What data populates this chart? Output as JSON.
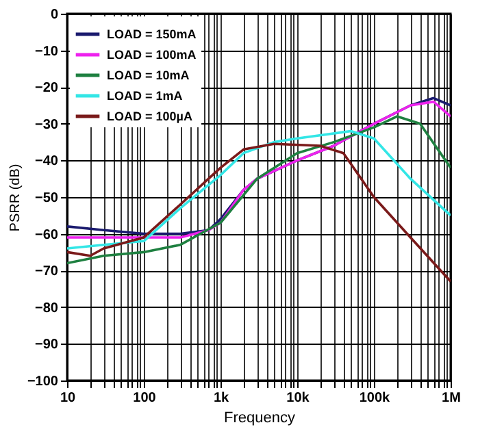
{
  "chart_data": {
    "type": "line",
    "xlabel": "Frequency",
    "ylabel": "PSRR (dB)",
    "log": "x",
    "grid": true,
    "legend": "top left",
    "line_style": "solid",
    "marker": "none",
    "xlim": [
      10,
      1000000
    ],
    "ylim": [
      -100,
      0
    ],
    "xticks": [
      {
        "value": 10,
        "label": "10"
      },
      {
        "value": 20,
        "label": null
      },
      {
        "value": 30,
        "label": null
      },
      {
        "value": 40,
        "label": null
      },
      {
        "value": 50,
        "label": null
      },
      {
        "value": 60,
        "label": null
      },
      {
        "value": 70,
        "label": null
      },
      {
        "value": 80,
        "label": null
      },
      {
        "value": 90,
        "label": null
      },
      {
        "value": 100,
        "label": "100"
      },
      {
        "value": 200,
        "label": null
      },
      {
        "value": 300,
        "label": null
      },
      {
        "value": 400,
        "label": null
      },
      {
        "value": 500,
        "label": null
      },
      {
        "value": 600,
        "label": null
      },
      {
        "value": 700,
        "label": null
      },
      {
        "value": 800,
        "label": null
      },
      {
        "value": 900,
        "label": null
      },
      {
        "value": 1000,
        "label": "1k"
      },
      {
        "value": 2000,
        "label": null
      },
      {
        "value": 3000,
        "label": null
      },
      {
        "value": 4000,
        "label": null
      },
      {
        "value": 5000,
        "label": null
      },
      {
        "value": 6000,
        "label": null
      },
      {
        "value": 7000,
        "label": null
      },
      {
        "value": 8000,
        "label": null
      },
      {
        "value": 9000,
        "label": null
      },
      {
        "value": 10000,
        "label": "10k"
      },
      {
        "value": 20000,
        "label": null
      },
      {
        "value": 30000,
        "label": null
      },
      {
        "value": 40000,
        "label": null
      },
      {
        "value": 50000,
        "label": null
      },
      {
        "value": 60000,
        "label": null
      },
      {
        "value": 70000,
        "label": null
      },
      {
        "value": 80000,
        "label": null
      },
      {
        "value": 90000,
        "label": null
      },
      {
        "value": 100000,
        "label": "100k"
      },
      {
        "value": 200000,
        "label": null
      },
      {
        "value": 300000,
        "label": null
      },
      {
        "value": 400000,
        "label": null
      },
      {
        "value": 500000,
        "label": null
      },
      {
        "value": 600000,
        "label": null
      },
      {
        "value": 700000,
        "label": null
      },
      {
        "value": 800000,
        "label": null
      },
      {
        "value": 900000,
        "label": null
      },
      {
        "value": 1000000,
        "label": "1M"
      }
    ],
    "yticks": [
      {
        "value": 0,
        "label": "0"
      },
      {
        "value": -10,
        "label": "−10"
      },
      {
        "value": -20,
        "label": "−20"
      },
      {
        "value": -30,
        "label": "−30"
      },
      {
        "value": -40,
        "label": "−40"
      },
      {
        "value": -50,
        "label": "−50"
      },
      {
        "value": -60,
        "label": "−60"
      },
      {
        "value": -70,
        "label": "−70"
      },
      {
        "value": -80,
        "label": "−80"
      },
      {
        "value": -90,
        "label": "−90"
      },
      {
        "value": -100,
        "label": "−100"
      }
    ],
    "series": [
      {
        "name": "LOAD = 150mA",
        "color": "#1a1a6e",
        "x": [
          10,
          30,
          100,
          300,
          700,
          1000,
          2000,
          3000,
          10000,
          30000,
          100000,
          300000,
          600000,
          1000000
        ],
        "values": [
          -58,
          -59,
          -60,
          -60,
          -59,
          -56,
          -48,
          -45,
          -40,
          -36,
          -30,
          -25,
          -23,
          -25
        ]
      },
      {
        "name": "LOAD = 100mA",
        "color": "#ee22ee",
        "x": [
          10,
          30,
          100,
          300,
          700,
          1000,
          2000,
          3000,
          10000,
          30000,
          100000,
          300000,
          600000,
          1000000
        ],
        "values": [
          -61,
          -61,
          -61,
          -61,
          -59,
          -57,
          -48,
          -45,
          -40,
          -36,
          -30,
          -25,
          -24,
          -28
        ]
      },
      {
        "name": "LOAD = 10mA",
        "color": "#1e8040",
        "x": [
          10,
          30,
          100,
          300,
          1000,
          3000,
          10000,
          30000,
          100000,
          200000,
          400000,
          1000000
        ],
        "values": [
          -68,
          -66,
          -65,
          -63,
          -57,
          -45,
          -38,
          -35,
          -31,
          -28,
          -30,
          -42
        ]
      },
      {
        "name": "LOAD = 1mA",
        "color": "#33e6e6",
        "x": [
          10,
          30,
          100,
          300,
          1000,
          2000,
          5000,
          10000,
          50000,
          100000,
          300000,
          1000000
        ],
        "values": [
          -64,
          -63,
          -62,
          -53,
          -44,
          -38,
          -35,
          -34,
          -32,
          -34,
          -45,
          -55
        ]
      },
      {
        "name": "LOAD = 100µA",
        "color": "#7a1a1a",
        "x": [
          10,
          20,
          30,
          100,
          300,
          1000,
          2000,
          5000,
          20000,
          40000,
          100000,
          300000,
          1000000
        ],
        "values": [
          -65,
          -66,
          -64,
          -61,
          -52,
          -42,
          -37,
          -35.5,
          -36,
          -38,
          -50,
          -61,
          -73
        ]
      }
    ]
  }
}
